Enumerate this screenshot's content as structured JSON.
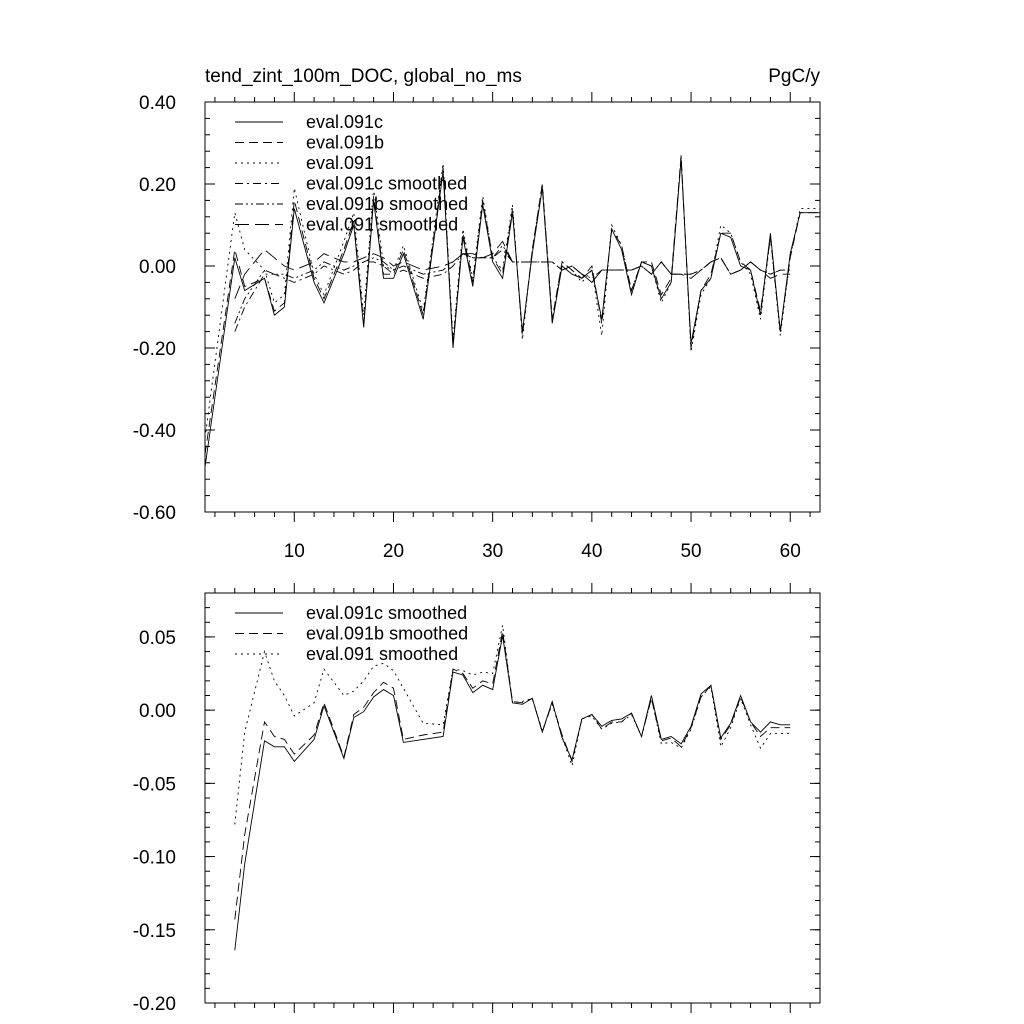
{
  "chart_data": [
    {
      "type": "line",
      "title": "tend_zint_100m_DOC, global_no_ms",
      "units": "PgC/y",
      "ylim": [
        -0.6,
        0.4
      ],
      "xlim": [
        1,
        63
      ],
      "y_ticks": [
        "0.40",
        "0.20",
        "0.00",
        "-0.20",
        "-0.40",
        "-0.60"
      ],
      "x_ticks": [
        "10",
        "20",
        "30",
        "40",
        "50",
        "60"
      ],
      "legend_position": "top-left",
      "series": [
        {
          "name": "eval.091c",
          "style": "solid",
          "x": [
            1,
            4,
            5,
            7,
            8,
            9,
            10,
            12,
            13,
            15,
            16,
            17,
            18,
            19,
            20,
            21,
            23,
            25,
            26,
            27,
            28,
            29,
            30,
            31,
            32,
            33,
            34,
            35,
            36,
            37,
            38,
            39,
            40,
            41,
            42,
            43,
            44,
            45,
            46,
            47,
            48,
            49,
            50,
            51,
            52,
            53,
            54,
            55,
            56,
            57,
            58,
            59,
            60,
            61,
            62,
            63
          ],
          "y": [
            -0.49,
            0.02,
            -0.06,
            -0.03,
            -0.12,
            -0.1,
            0.14,
            -0.04,
            -0.09,
            0.03,
            0.1,
            -0.15,
            0.16,
            -0.03,
            -0.03,
            0.03,
            -0.13,
            0.23,
            -0.2,
            0.07,
            -0.05,
            0.15,
            0.01,
            -0.03,
            0.13,
            -0.16,
            0.03,
            0.19,
            -0.14,
            0.0,
            -0.02,
            -0.03,
            -0.01,
            -0.13,
            0.09,
            0.04,
            -0.07,
            0.01,
            0.0,
            -0.08,
            -0.04,
            0.26,
            -0.19,
            -0.06,
            -0.03,
            0.08,
            0.07,
            0.0,
            -0.01,
            -0.12,
            0.08,
            -0.16,
            0.03,
            0.13,
            0.13,
            0.13
          ]
        },
        {
          "name": "eval.091b",
          "style": "dashed",
          "x": [
            1,
            4,
            5,
            7,
            8,
            9,
            10,
            12,
            13,
            15,
            16,
            17,
            18,
            19,
            20,
            21,
            23,
            25,
            26,
            27,
            28,
            29,
            30,
            31,
            32,
            33,
            34,
            35,
            36,
            37,
            38,
            39,
            40,
            41,
            42,
            43,
            44,
            45,
            46,
            47,
            48,
            49,
            50,
            51,
            52,
            53,
            54,
            55,
            56,
            57,
            58,
            59,
            60,
            61,
            62,
            63
          ],
          "y": [
            -0.46,
            0.04,
            -0.05,
            -0.03,
            -0.11,
            -0.09,
            0.16,
            -0.03,
            -0.08,
            0.04,
            0.11,
            -0.14,
            0.17,
            -0.02,
            -0.02,
            0.04,
            -0.12,
            0.24,
            -0.19,
            0.08,
            -0.04,
            0.16,
            0.02,
            -0.02,
            0.14,
            -0.17,
            0.04,
            0.2,
            -0.13,
            0.01,
            -0.01,
            -0.03,
            0.0,
            -0.14,
            0.09,
            0.05,
            -0.06,
            0.01,
            0.01,
            -0.07,
            -0.03,
            0.27,
            -0.2,
            -0.06,
            -0.02,
            0.08,
            0.08,
            0.01,
            -0.01,
            -0.11,
            0.07,
            -0.16,
            0.02,
            0.13,
            0.13,
            0.13
          ]
        },
        {
          "name": "eval.091",
          "style": "dotted",
          "x": [
            1,
            4,
            5,
            7,
            8,
            9,
            10,
            12,
            13,
            15,
            16,
            17,
            18,
            19,
            20,
            21,
            23,
            25,
            26,
            27,
            28,
            29,
            30,
            31,
            32,
            33,
            34,
            35,
            36,
            37,
            38,
            39,
            40,
            41,
            42,
            43,
            44,
            45,
            46,
            47,
            48,
            49,
            50,
            51,
            52,
            53,
            54,
            55,
            56,
            57,
            58,
            59,
            60,
            61,
            62,
            63
          ],
          "y": [
            -0.42,
            0.13,
            0.04,
            -0.01,
            -0.09,
            -0.07,
            0.19,
            -0.02,
            -0.07,
            0.06,
            0.13,
            -0.12,
            0.19,
            0.0,
            -0.01,
            0.05,
            -0.11,
            0.25,
            -0.18,
            0.09,
            -0.03,
            0.17,
            0.02,
            -0.01,
            0.15,
            -0.18,
            0.04,
            0.2,
            -0.13,
            0.01,
            -0.01,
            -0.04,
            -0.01,
            -0.17,
            0.1,
            0.05,
            -0.06,
            0.01,
            0.0,
            -0.09,
            -0.04,
            0.27,
            -0.21,
            -0.07,
            -0.03,
            0.1,
            0.08,
            0.01,
            -0.02,
            -0.13,
            0.07,
            -0.17,
            0.02,
            0.14,
            0.14,
            0.14
          ]
        },
        {
          "name": "eval.091c smoothed",
          "style": "dashdot",
          "x": [
            4,
            5,
            7,
            8,
            9,
            10,
            12,
            13,
            15,
            16,
            17,
            18,
            19,
            20,
            21,
            23,
            25,
            26,
            27,
            28,
            29,
            30,
            31,
            32,
            33,
            34,
            35,
            36,
            37,
            38,
            39,
            40,
            41,
            42,
            43,
            44,
            45,
            46,
            47,
            48,
            49,
            50,
            51,
            52,
            53,
            54,
            55,
            56,
            57,
            58,
            59,
            60
          ],
          "y": [
            -0.16,
            -0.1,
            -0.02,
            -0.02,
            -0.03,
            -0.04,
            -0.02,
            0.0,
            -0.02,
            -0.01,
            0.01,
            0.01,
            0.0,
            -0.02,
            -0.01,
            -0.03,
            -0.02,
            0.0,
            0.03,
            0.02,
            0.02,
            0.02,
            0.04,
            0.01,
            0.01,
            0.01,
            0.01,
            0.01,
            -0.01,
            0.0,
            -0.02,
            -0.04,
            -0.01,
            -0.01,
            -0.01,
            -0.01,
            0.0,
            -0.02,
            0.01,
            -0.02,
            -0.02,
            -0.02,
            -0.01,
            0.01,
            0.02,
            -0.02,
            -0.01,
            0.01,
            -0.01,
            -0.02,
            -0.01,
            -0.01
          ]
        },
        {
          "name": "eval.091b smoothed",
          "style": "dashdotdot",
          "x": [
            4,
            5,
            7,
            8,
            9,
            10,
            12,
            13,
            15,
            16,
            17,
            18,
            19,
            20,
            21,
            23,
            25,
            26,
            27,
            28,
            29,
            30,
            31,
            32,
            33,
            34,
            35,
            36,
            37,
            38,
            39,
            40,
            41,
            42,
            43,
            44,
            45,
            46,
            47,
            48,
            49,
            50,
            51,
            52,
            53,
            54,
            55,
            56,
            57,
            58,
            59,
            60
          ],
          "y": [
            -0.14,
            -0.08,
            -0.01,
            -0.02,
            -0.02,
            -0.03,
            -0.01,
            0.01,
            -0.01,
            0.0,
            0.01,
            0.02,
            0.01,
            -0.01,
            0.0,
            -0.02,
            -0.01,
            0.01,
            0.03,
            0.02,
            0.02,
            0.02,
            0.05,
            0.01,
            0.01,
            0.01,
            0.01,
            0.01,
            -0.01,
            0.0,
            -0.02,
            -0.03,
            -0.01,
            -0.01,
            -0.01,
            -0.01,
            0.0,
            -0.02,
            0.01,
            -0.02,
            -0.02,
            -0.02,
            -0.01,
            0.01,
            0.02,
            -0.02,
            -0.01,
            0.01,
            -0.01,
            -0.02,
            -0.01,
            -0.01
          ]
        },
        {
          "name": "eval.091 smoothed",
          "style": "longdash",
          "x": [
            4,
            5,
            7,
            8,
            9,
            10,
            12,
            13,
            15,
            16,
            17,
            18,
            19,
            20,
            21,
            23,
            25,
            26,
            27,
            28,
            29,
            30,
            31,
            32,
            33,
            34,
            35,
            36,
            37,
            38,
            39,
            40,
            41,
            42,
            43,
            44,
            45,
            46,
            47,
            48,
            49,
            50,
            51,
            52,
            53,
            54,
            55,
            56,
            57,
            58,
            59,
            60
          ],
          "y": [
            -0.08,
            -0.02,
            0.04,
            0.02,
            0.0,
            -0.01,
            0.01,
            0.03,
            0.01,
            0.01,
            0.02,
            0.03,
            0.02,
            0.0,
            0.01,
            -0.01,
            0.0,
            0.01,
            0.03,
            0.03,
            0.02,
            0.03,
            0.06,
            0.01,
            0.01,
            0.01,
            0.01,
            0.01,
            -0.01,
            0.0,
            -0.02,
            -0.04,
            -0.01,
            -0.01,
            -0.01,
            -0.01,
            0.0,
            -0.02,
            0.01,
            -0.02,
            -0.02,
            -0.03,
            -0.01,
            0.01,
            0.02,
            -0.02,
            -0.01,
            0.01,
            -0.01,
            -0.03,
            -0.02,
            -0.02
          ]
        }
      ]
    },
    {
      "type": "line",
      "title": "",
      "ylim": [
        -0.2,
        0.08
      ],
      "xlim": [
        1,
        63
      ],
      "y_ticks": [
        "0.05",
        "0.00",
        "-0.05",
        "-0.10",
        "-0.15",
        "-0.20"
      ],
      "y_tick_values": [
        0.05,
        0.0,
        -0.05,
        -0.1,
        -0.15,
        -0.2
      ],
      "legend_position": "top-left",
      "series": [
        {
          "name": "eval.091c smoothed",
          "style": "solid",
          "x": [
            4,
            5,
            7,
            8,
            9,
            10,
            12,
            13,
            15,
            16,
            17,
            18,
            19,
            20,
            21,
            23,
            25,
            26,
            27,
            28,
            29,
            30,
            31,
            32,
            33,
            34,
            35,
            36,
            37,
            38,
            39,
            40,
            41,
            42,
            43,
            44,
            45,
            46,
            47,
            48,
            49,
            50,
            51,
            52,
            53,
            54,
            55,
            56,
            57,
            58,
            59,
            60
          ],
          "y": [
            -0.164,
            -0.105,
            -0.021,
            -0.025,
            -0.025,
            -0.035,
            -0.02,
            0.003,
            -0.033,
            -0.005,
            -0.001,
            0.009,
            0.014,
            0.01,
            -0.022,
            -0.02,
            -0.018,
            0.026,
            0.024,
            0.012,
            0.017,
            0.014,
            0.051,
            0.005,
            0.004,
            0.008,
            -0.015,
            0.006,
            -0.019,
            -0.034,
            -0.006,
            -0.003,
            -0.011,
            -0.007,
            -0.006,
            -0.002,
            -0.018,
            0.01,
            -0.02,
            -0.018,
            -0.023,
            -0.011,
            0.011,
            0.017,
            -0.019,
            -0.009,
            0.01,
            -0.008,
            -0.015,
            -0.008,
            -0.01,
            -0.01
          ]
        },
        {
          "name": "eval.091b smoothed",
          "style": "dashed",
          "x": [
            4,
            5,
            7,
            8,
            9,
            10,
            12,
            13,
            15,
            16,
            17,
            18,
            19,
            20,
            21,
            23,
            25,
            26,
            27,
            28,
            29,
            30,
            31,
            32,
            33,
            34,
            35,
            36,
            37,
            38,
            39,
            40,
            41,
            42,
            43,
            44,
            45,
            46,
            47,
            48,
            49,
            50,
            51,
            52,
            53,
            54,
            55,
            56,
            57,
            58,
            59,
            60
          ],
          "y": [
            -0.143,
            -0.085,
            -0.008,
            -0.018,
            -0.02,
            -0.03,
            -0.017,
            0.005,
            -0.032,
            -0.003,
            0.002,
            0.012,
            0.019,
            0.015,
            -0.02,
            -0.017,
            -0.015,
            0.028,
            0.025,
            0.015,
            0.02,
            0.018,
            0.054,
            0.006,
            0.005,
            0.008,
            -0.015,
            0.005,
            -0.017,
            -0.035,
            -0.006,
            -0.003,
            -0.013,
            -0.008,
            -0.008,
            -0.002,
            -0.018,
            0.008,
            -0.021,
            -0.019,
            -0.025,
            -0.012,
            0.009,
            0.017,
            -0.02,
            -0.01,
            0.009,
            -0.008,
            -0.018,
            -0.012,
            -0.012,
            -0.012
          ]
        },
        {
          "name": "eval.091 smoothed",
          "style": "dotted",
          "x": [
            4,
            5,
            7,
            8,
            9,
            10,
            12,
            13,
            15,
            16,
            17,
            18,
            19,
            20,
            21,
            23,
            25,
            26,
            27,
            28,
            29,
            30,
            31,
            32,
            33,
            34,
            35,
            36,
            37,
            38,
            39,
            40,
            41,
            42,
            43,
            44,
            45,
            46,
            47,
            48,
            49,
            50,
            51,
            52,
            53,
            54,
            55,
            56,
            57,
            58,
            59,
            60
          ],
          "y": [
            -0.078,
            -0.015,
            0.04,
            0.02,
            0.01,
            -0.004,
            0.005,
            0.028,
            0.01,
            0.013,
            0.02,
            0.03,
            0.032,
            0.027,
            0.015,
            -0.009,
            -0.01,
            0.028,
            0.027,
            0.024,
            0.026,
            0.025,
            0.058,
            0.005,
            0.006,
            0.008,
            -0.014,
            0.004,
            -0.018,
            -0.038,
            -0.006,
            -0.004,
            -0.013,
            -0.009,
            -0.008,
            -0.003,
            -0.018,
            0.008,
            -0.023,
            -0.022,
            -0.026,
            -0.013,
            0.009,
            0.016,
            -0.025,
            -0.012,
            0.008,
            -0.01,
            -0.026,
            -0.016,
            -0.016,
            -0.016
          ]
        }
      ]
    }
  ]
}
